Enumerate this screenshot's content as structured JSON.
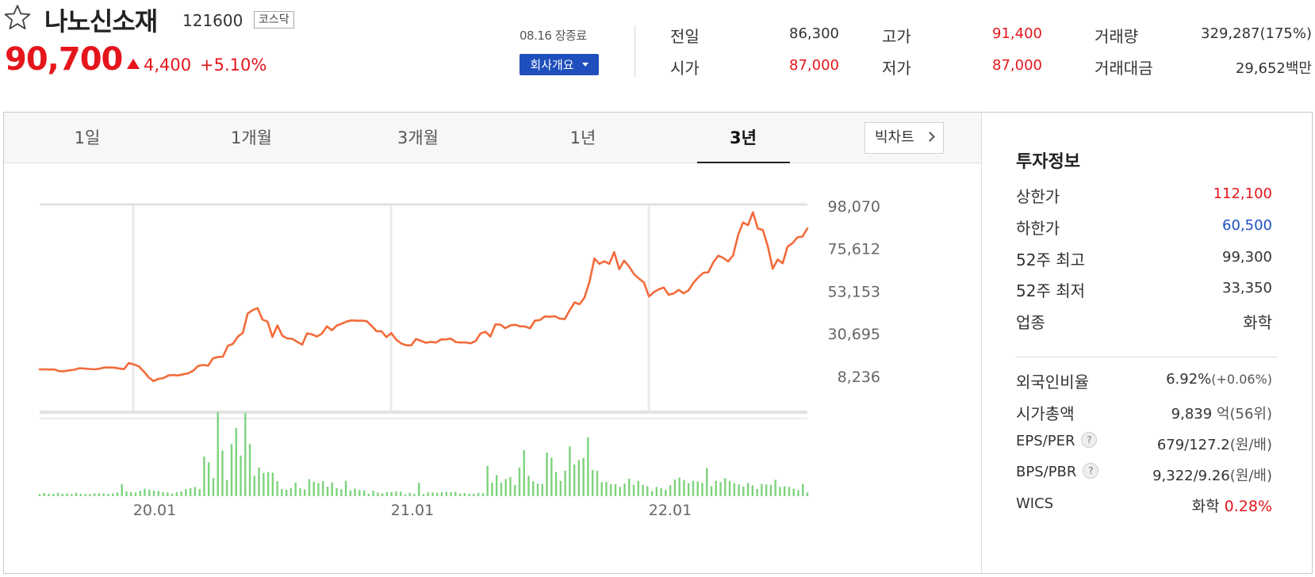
{
  "stock": {
    "name": "나노신소재",
    "code": "121600",
    "market": "코스닥",
    "price": "90,700",
    "change": "4,400",
    "change_rate": "+5.10%"
  },
  "status": {
    "date": "08.16 장종료",
    "company_button": "회사개요"
  },
  "summary": {
    "prev_close_label": "전일",
    "prev_close": "86,300",
    "open_label": "시가",
    "open": "87,000",
    "high_label": "고가",
    "high": "91,400",
    "low_label": "저가",
    "low": "87,000",
    "volume_label": "거래량",
    "volume": "329,287(175%)",
    "amount_label": "거래대금",
    "amount": "29,652백만"
  },
  "tabs": [
    "1일",
    "1개월",
    "3개월",
    "1년",
    "3년"
  ],
  "active_tab": "3년",
  "bigchart_label": "빅차트",
  "chart_data": {
    "type": "line",
    "y_ticks": [
      "98,070",
      "75,612",
      "53,153",
      "30,695",
      "8,236"
    ],
    "ylim": [
      8236,
      98070
    ],
    "x_ticks": [
      "20.01",
      "21.01",
      "22.01"
    ],
    "series": [
      {
        "values": [
          12000,
          12000,
          11900,
          11900,
          11000,
          11000,
          11500,
          11800,
          12600,
          12400,
          12200,
          12000,
          12300,
          12900,
          13000,
          12900,
          12500,
          12100,
          15300,
          14600,
          13600,
          11000,
          7800,
          5800,
          7000,
          7400,
          8800,
          9000,
          8800,
          9400,
          9900,
          11300,
          13800,
          14300,
          13900,
          17800,
          18500,
          18700,
          24400,
          25400,
          29200,
          31200,
          41400,
          43200,
          44300,
          38200,
          37200,
          29100,
          35100,
          29700,
          28300,
          28100,
          26500,
          25000,
          31000,
          30400,
          29300,
          30900,
          34700,
          32600,
          35100,
          36100,
          37200,
          37800,
          37600,
          37700,
          37400,
          35000,
          32100,
          32100,
          29000,
          31100,
          27600,
          25600,
          24700,
          24600,
          28000,
          27000,
          26000,
          26500,
          26100,
          27700,
          27800,
          28200,
          26400,
          26100,
          26200,
          25700,
          26900,
          30900,
          31800,
          29300,
          35700,
          35600,
          33700,
          35100,
          35500,
          34700,
          34600,
          33600,
          37700,
          38000,
          39900,
          39700,
          40000,
          38800,
          38500,
          43100,
          47300,
          46300,
          49900,
          58100,
          70400,
          67600,
          69000,
          67600,
          73800,
          64800,
          69300,
          66200,
          62200,
          59800,
          57800,
          50400,
          52700,
          54200,
          55100,
          51300,
          52000,
          53900,
          52100,
          53600,
          57700,
          60600,
          62900,
          63200,
          68300,
          71900,
          70800,
          68900,
          72100,
          82700,
          89400,
          88000,
          94800,
          86200,
          85500,
          77000,
          65000,
          69900,
          67900,
          76700,
          78500,
          81600,
          82000,
          86300
        ]
      }
    ]
  },
  "volume_data": {
    "type": "bar",
    "values": [
      0.6,
      0.9,
      0.7,
      0.7,
      1.0,
      0.7,
      0.8,
      0.6,
      1.0,
      0.7,
      0.6,
      0.6,
      0.8,
      0.8,
      0.8,
      0.7,
      0.8,
      1.1,
      3.5,
      1.4,
      1.2,
      1.1,
      1.6,
      2.2,
      1.9,
      1.6,
      1.5,
      1.2,
      1.1,
      0.8,
      1.2,
      1.4,
      2.1,
      2.4,
      2.7,
      2.1,
      11.6,
      9.9,
      5.3,
      24.6,
      13.4,
      4.7,
      15.3,
      20.0,
      11.9,
      24.4,
      15.3,
      6.0,
      8.4,
      6.8,
      7.1,
      6.9,
      4.4,
      2.1,
      1.9,
      2.3,
      4.0,
      2.3,
      2.0,
      5.0,
      4.2,
      3.8,
      4.4,
      2.8,
      4.0,
      2.4,
      2.0,
      4.5,
      1.7,
      2.2,
      1.8,
      1.7,
      0.7,
      1.6,
      1.1,
      0.8,
      1.2,
      1.2,
      1.4,
      1.3,
      0.5,
      1.0,
      0.7,
      3.9,
      0.6,
      1.1,
      1.1,
      1.0,
      1.2,
      1.3,
      1.2,
      1.3,
      0.8,
      0.9,
      0.7,
      0.7,
      1.0,
      0.9,
      8.9,
      4.0,
      6.2,
      4.0,
      5.0,
      5.6,
      3.3,
      8.4,
      13.5,
      6.0,
      4.4,
      3.7,
      3.6,
      12.8,
      11.3,
      7.1,
      4.5,
      7.5,
      14.6,
      9.3,
      10.6,
      11.2,
      17.3,
      7.7,
      7.5,
      4.1,
      4.2,
      3.5,
      3.5,
      2.7,
      3.7,
      5.1,
      3.3,
      4.5,
      3.3,
      2.9,
      1.5,
      2.7,
      2.3,
      1.9,
      3.2,
      4.9,
      5.5,
      4.7,
      3.8,
      4.5,
      4.3,
      3.9,
      8.2,
      2.9,
      4.5,
      4.1,
      5.3,
      4.5,
      3.8,
      3.5,
      2.8,
      3.9,
      3.2,
      2.1,
      3.6,
      3.4,
      3.3,
      4.8,
      2.7,
      2.9,
      2.7,
      2.2,
      1.8,
      3.5,
      1.1
    ]
  },
  "investment": {
    "title": "투자정보",
    "upper_limit_label": "상한가",
    "upper_limit": "112,100",
    "lower_limit_label": "하한가",
    "lower_limit": "60,500",
    "high_52w_label": "52주 최고",
    "high_52w": "99,300",
    "low_52w_label": "52주 최저",
    "low_52w": "33,350",
    "industry_label": "업종",
    "industry": "화학",
    "foreign_label": "외국인비율",
    "foreign_ratio": "6.92%",
    "foreign_change": "(+0.06%)",
    "mcap_label": "시가총액",
    "mcap": "9,839",
    "mcap_unit": "억(56위)",
    "eps_per_label": "EPS/PER",
    "eps_per": "679/127.2",
    "eps_per_unit": "(원/배)",
    "bps_pbr_label": "BPS/PBR",
    "bps_pbr": "9,322/9.26",
    "bps_pbr_unit": "(원/배)",
    "wics_label": "WICS",
    "wics_sector": "화학",
    "wics_change": "0.28%"
  },
  "colors": {
    "up": "#e4161c",
    "down": "#1f4fbd",
    "line": "#f26b3a",
    "volume": "#7ed37e",
    "accent": "#1f4fbd"
  }
}
